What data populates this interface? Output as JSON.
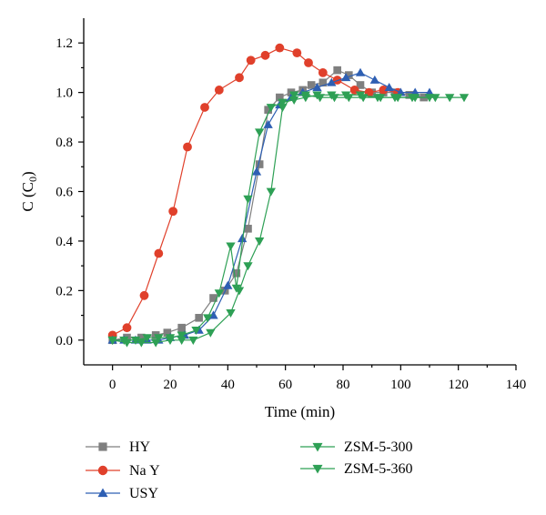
{
  "chart_data": {
    "type": "line",
    "title": "",
    "xlabel": "Time (min)",
    "ylabel_main": "C (C",
    "ylabel_sub": "0",
    "ylabel_close": ")",
    "xlim": [
      -10,
      140
    ],
    "ylim": [
      -0.1,
      1.3
    ],
    "xticks": [
      0,
      20,
      40,
      60,
      80,
      100,
      120,
      140
    ],
    "yticks": [
      0.0,
      0.2,
      0.4,
      0.6,
      0.8,
      1.0,
      1.2
    ],
    "ytick_labels": [
      "0.0",
      "0.2",
      "0.4",
      "0.6",
      "0.8",
      "1.0",
      "1.2"
    ],
    "grid": false,
    "legend_position": "bottom",
    "series": [
      {
        "name": "HY",
        "color": "#7f7f7f",
        "marker": "square",
        "x": [
          0,
          5,
          10,
          15,
          19,
          24,
          30,
          35,
          39,
          43,
          47,
          51,
          54,
          58,
          62,
          66,
          69,
          73,
          78,
          82,
          86,
          90,
          94,
          98,
          103,
          108
        ],
        "y": [
          0.0,
          0.01,
          0.01,
          0.02,
          0.03,
          0.05,
          0.09,
          0.17,
          0.2,
          0.27,
          0.45,
          0.71,
          0.93,
          0.98,
          1.0,
          1.01,
          1.03,
          1.04,
          1.09,
          1.07,
          1.03,
          1.0,
          1.0,
          1.0,
          0.99,
          0.98
        ]
      },
      {
        "name": "Na Y",
        "color": "#e0402b",
        "marker": "circle",
        "x": [
          0,
          5,
          11,
          16,
          21,
          26,
          32,
          37,
          44,
          48,
          53,
          58,
          64,
          68,
          73,
          78,
          84,
          89,
          94,
          99
        ],
        "y": [
          0.02,
          0.05,
          0.18,
          0.35,
          0.52,
          0.78,
          0.94,
          1.01,
          1.06,
          1.13,
          1.15,
          1.18,
          1.16,
          1.12,
          1.08,
          1.05,
          1.01,
          1.0,
          1.01,
          1.0
        ]
      },
      {
        "name": "USY",
        "color": "#2e5fb3",
        "marker": "triangle-up",
        "x": [
          0,
          4,
          8,
          12,
          16,
          20,
          25,
          30,
          35,
          40,
          45,
          50,
          54,
          58,
          62,
          66,
          71,
          76,
          81,
          86,
          91,
          96,
          100,
          105,
          110
        ],
        "y": [
          0.0,
          0.0,
          0.0,
          0.0,
          0.0,
          0.01,
          0.02,
          0.04,
          0.1,
          0.22,
          0.41,
          0.68,
          0.87,
          0.95,
          0.98,
          1.0,
          1.02,
          1.04,
          1.06,
          1.08,
          1.05,
          1.02,
          1.0,
          1.0,
          1.0
        ]
      },
      {
        "name": "ZSM-5-300",
        "color": "#2ea055",
        "marker": "triangle-down",
        "x": [
          0,
          4,
          8,
          12,
          16,
          20,
          24,
          29,
          33,
          37,
          41,
          43,
          47,
          51,
          55,
          59,
          63,
          67,
          71,
          76,
          81,
          86,
          92,
          98,
          104,
          110
        ],
        "y": [
          0.0,
          0.0,
          0.0,
          0.01,
          0.01,
          0.01,
          0.02,
          0.04,
          0.09,
          0.19,
          0.38,
          0.21,
          0.57,
          0.84,
          0.94,
          0.96,
          0.97,
          0.98,
          0.99,
          0.99,
          0.99,
          0.99,
          0.98,
          0.98,
          0.98,
          0.98
        ]
      },
      {
        "name": "ZSM-5-360",
        "color": "#2ea055",
        "marker": "triangle-down",
        "x": [
          0,
          5,
          10,
          15,
          20,
          24,
          28,
          34,
          41,
          44,
          47,
          51,
          55,
          59,
          63,
          67,
          72,
          77,
          82,
          87,
          93,
          99,
          105,
          112,
          117,
          122
        ],
        "y": [
          0.0,
          -0.01,
          -0.01,
          -0.01,
          0.0,
          0.0,
          0.0,
          0.03,
          0.11,
          0.2,
          0.3,
          0.4,
          0.6,
          0.94,
          0.99,
          0.99,
          0.98,
          0.98,
          0.98,
          0.98,
          0.98,
          0.98,
          0.98,
          0.98,
          0.98,
          0.98
        ]
      }
    ]
  }
}
